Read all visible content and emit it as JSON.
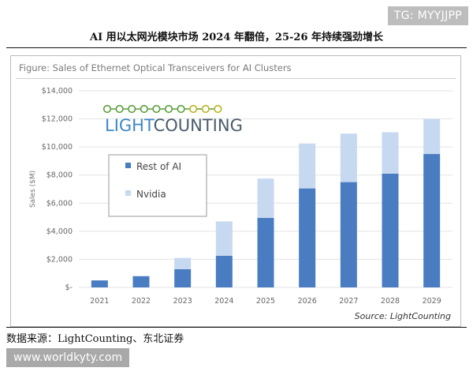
{
  "watermark": "TG: MYYJJPP",
  "headline": "AI 用以太网光模块市场 2024 年翻倍，25-26 年持续强劲增长",
  "figure_title": "Figure: Sales of Ethernet Optical Transceivers for AI Clusters",
  "logo_text": {
    "light": "LIGHT",
    "counting": "COUNTING"
  },
  "source": "Source: LightCounting",
  "footnote": "数据来源：LightCounting、东北证券",
  "url": "www.worldkyty.com",
  "colors": {
    "rest_of_ai": "#4a7cc2",
    "nvidia": "#c7d9f0",
    "logo_dots": "#5a9e3a"
  },
  "chart_data": {
    "type": "bar",
    "stacked": true,
    "categories": [
      "2021",
      "2022",
      "2023",
      "2024",
      "2025",
      "2026",
      "2027",
      "2028",
      "2029"
    ],
    "series": [
      {
        "name": "Rest of AI",
        "values": [
          500,
          800,
          1300,
          2250,
          4950,
          7050,
          7500,
          8100,
          9500
        ]
      },
      {
        "name": "Nvidia",
        "values": [
          0,
          0,
          800,
          2450,
          2800,
          3200,
          3450,
          2950,
          2500
        ]
      }
    ],
    "ylabel": "Sales ($M)",
    "ylim": [
      0,
      14000
    ],
    "yticks": [
      0,
      2000,
      4000,
      6000,
      8000,
      10000,
      12000,
      14000
    ],
    "ytick_labels": [
      "$-",
      "$2,000",
      "$4,000",
      "$6,000",
      "$8,000",
      "$10,000",
      "$12,000",
      "$14,000"
    ],
    "grid": true,
    "legend": "left"
  }
}
